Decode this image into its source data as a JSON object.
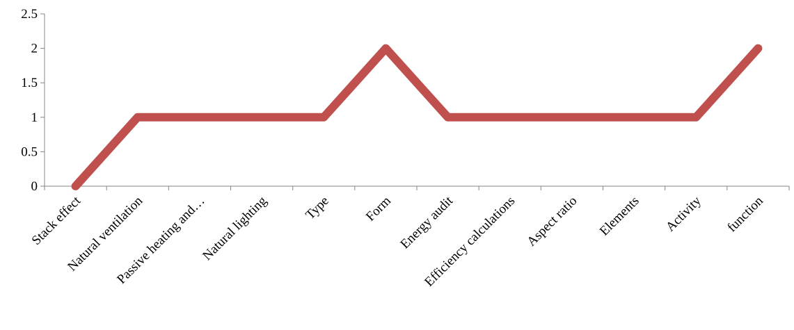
{
  "chart_data": {
    "type": "line",
    "categories": [
      "Stack effect",
      "Natural ventilation",
      "Passive heating and…",
      "Natural lighting",
      "Type",
      "Form",
      "Energy audit",
      "Efficiency calculations",
      "Aspect ratio",
      "Elements",
      "Activity",
      "function"
    ],
    "series": [
      {
        "values": [
          0,
          1,
          1,
          1,
          1,
          2,
          1,
          1,
          1,
          1,
          1,
          2
        ],
        "color": "#C0504D"
      }
    ],
    "yticks": [
      "0",
      "0.5",
      "1",
      "1.5",
      "2",
      "2.5"
    ],
    "ylim": [
      0,
      2.5
    ],
    "grid": false,
    "legend": "none"
  }
}
